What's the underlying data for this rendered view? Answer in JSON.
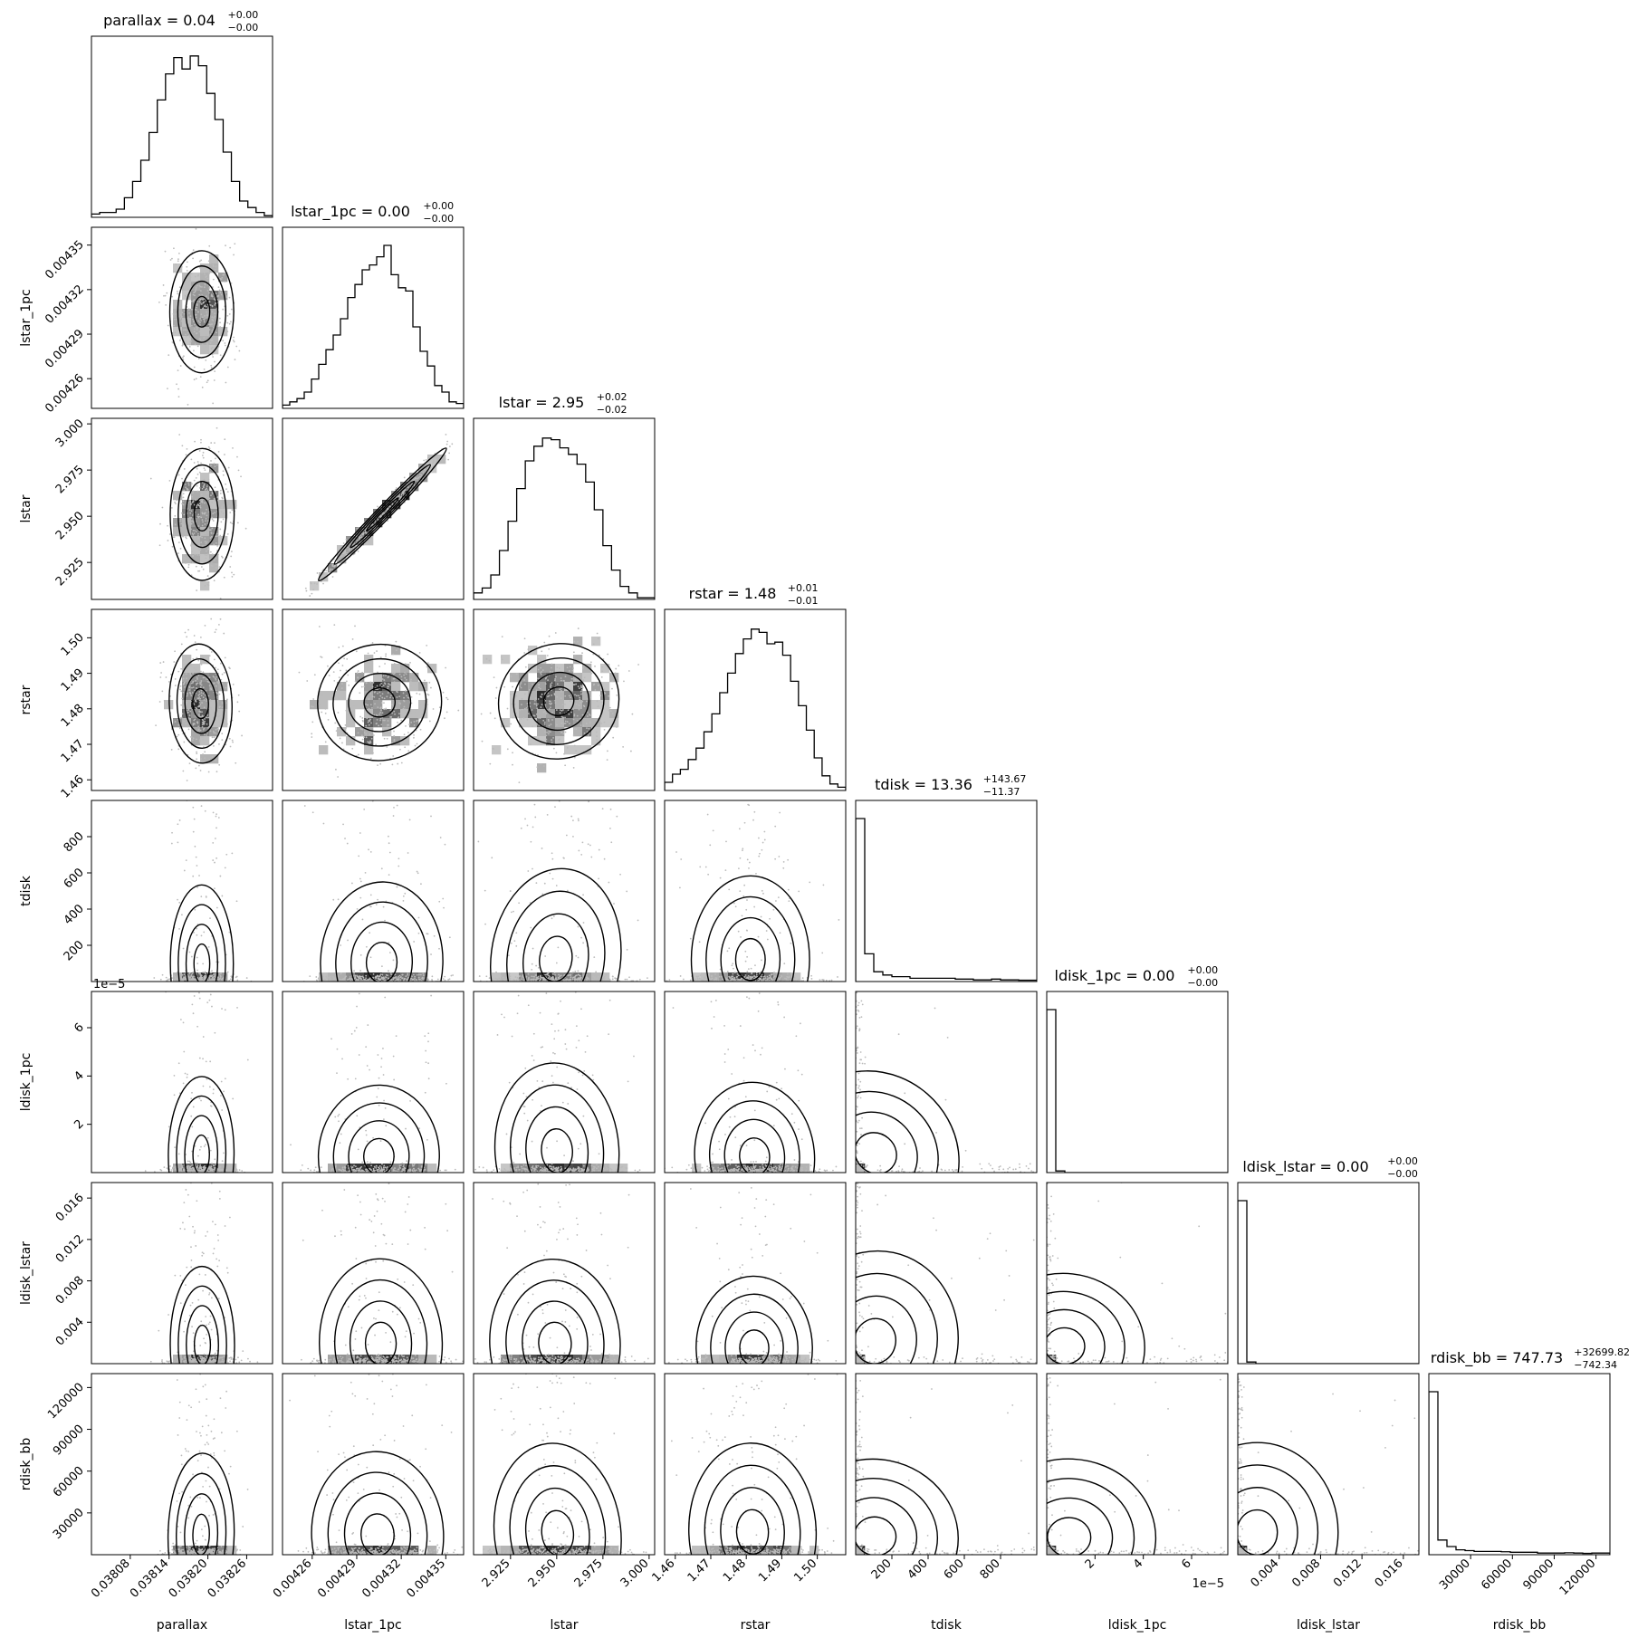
{
  "chart_data": {
    "type": "corner",
    "parameters": [
      {
        "name": "parallax",
        "label": "parallax",
        "range": [
          0.03802,
          0.0383
        ],
        "ticks": [
          0.03808,
          0.03814,
          0.0382,
          0.03826
        ],
        "tick_labels": [
          "0.03808",
          "0.03814",
          "0.03820",
          "0.03826"
        ],
        "title": {
          "text": "parallax = 0.04",
          "sup": "+0.00",
          "sub": "−0.00"
        },
        "median": 0.03819,
        "sigma": 2.5e-05,
        "skew": false,
        "hist": [
          0.02,
          0.03,
          0.03,
          0.05,
          0.12,
          0.22,
          0.35,
          0.52,
          0.72,
          0.88,
          0.98,
          0.91,
          0.99,
          0.93,
          0.76,
          0.6,
          0.4,
          0.22,
          0.1,
          0.06,
          0.03,
          0.01
        ]
      },
      {
        "name": "lstar_1pc",
        "label": "lstar_1pc",
        "range": [
          0.00424,
          0.004362
        ],
        "ticks": [
          0.00426,
          0.00429,
          0.00432,
          0.00435
        ],
        "tick_labels": [
          "0.00426",
          "0.00429",
          "0.00432",
          "0.00435"
        ],
        "title": {
          "text": "lstar_1pc = 0.00",
          "sup": "+0.00",
          "sub": "−0.00"
        },
        "median": 0.004306,
        "sigma": 2.05e-05,
        "skew": false,
        "hist": [
          0.02,
          0.04,
          0.06,
          0.1,
          0.18,
          0.27,
          0.36,
          0.45,
          0.55,
          0.68,
          0.76,
          0.85,
          0.88,
          0.93,
          1.0,
          0.82,
          0.74,
          0.72,
          0.5,
          0.35,
          0.26,
          0.14,
          0.1,
          0.04,
          0.03
        ]
      },
      {
        "name": "lstar",
        "label": "lstar",
        "range": [
          2.905,
          3.003
        ],
        "ticks": [
          2.925,
          2.95,
          2.975,
          3.0
        ],
        "tick_labels": [
          "2.925",
          "2.950",
          "2.975",
          "3.000"
        ],
        "title": {
          "text": "lstar = 2.95",
          "sup": "+0.02",
          "sub": "−0.02"
        },
        "median": 2.95,
        "sigma": 0.017,
        "skew": false,
        "hist": [
          0.04,
          0.07,
          0.15,
          0.3,
          0.48,
          0.68,
          0.85,
          0.94,
          0.99,
          0.98,
          0.93,
          0.89,
          0.83,
          0.72,
          0.55,
          0.33,
          0.18,
          0.08,
          0.04,
          0.01,
          0.01
        ]
      },
      {
        "name": "rstar",
        "label": "rstar",
        "range": [
          1.457,
          1.508
        ],
        "ticks": [
          1.46,
          1.47,
          1.48,
          1.49,
          1.5
        ],
        "tick_labels": [
          "1.46",
          "1.47",
          "1.48",
          "1.49",
          "1.50"
        ],
        "title": {
          "text": "rstar = 1.48",
          "sup": "+0.01",
          "sub": "−0.01"
        },
        "median": 1.482,
        "sigma": 0.0085,
        "skew": false,
        "hist": [
          0.05,
          0.1,
          0.13,
          0.19,
          0.26,
          0.36,
          0.47,
          0.6,
          0.72,
          0.84,
          0.93,
          0.99,
          0.97,
          0.9,
          0.91,
          0.83,
          0.67,
          0.52,
          0.37,
          0.2,
          0.09,
          0.04,
          0.02
        ]
      },
      {
        "name": "tdisk",
        "label": "tdisk",
        "range": [
          0,
          1000
        ],
        "ticks": [
          200,
          400,
          600,
          800
        ],
        "tick_labels": [
          "200",
          "400",
          "600",
          "800"
        ],
        "title": {
          "text": "tdisk = 13.36",
          "sup": "+143.67",
          "sub": "−11.37"
        },
        "median": 13.36,
        "sigma": 60,
        "skew": true,
        "hist": [
          1.0,
          0.17,
          0.06,
          0.04,
          0.03,
          0.03,
          0.02,
          0.02,
          0.02,
          0.02,
          0.02,
          0.015,
          0.015,
          0.01,
          0.01,
          0.015,
          0.01,
          0.01,
          0.008,
          0.008
        ]
      },
      {
        "name": "ldisk_1pc",
        "label": "ldisk_1pc",
        "range": [
          0,
          7.5e-05
        ],
        "ticks": [
          2e-05,
          4e-05,
          6e-05
        ],
        "tick_labels": [
          "2",
          "4",
          "6"
        ],
        "exponent_label": "1e−5",
        "title": {
          "text": "ldisk_1pc = 0.00",
          "sup": "+0.00",
          "sub": "−0.00"
        },
        "median": 1e-07,
        "sigma": 1e-06,
        "skew": true,
        "hist": [
          1.0,
          0.01,
          0,
          0,
          0,
          0,
          0,
          0,
          0,
          0,
          0,
          0,
          0,
          0,
          0,
          0,
          0,
          0,
          0,
          0
        ]
      },
      {
        "name": "ldisk_lstar",
        "label": "ldisk_lstar",
        "range": [
          0,
          0.0175
        ],
        "ticks": [
          0.004,
          0.008,
          0.012,
          0.016
        ],
        "tick_labels": [
          "0.004",
          "0.008",
          "0.012",
          "0.016"
        ],
        "title": {
          "text": "ldisk_lstar = 0.00",
          "sup": "+0.00",
          "sub": "−0.00"
        },
        "median": 2e-05,
        "sigma": 0.0002,
        "skew": true,
        "hist": [
          1.0,
          0.01,
          0,
          0,
          0,
          0,
          0,
          0,
          0,
          0,
          0,
          0,
          0,
          0,
          0,
          0,
          0,
          0,
          0,
          0
        ]
      },
      {
        "name": "rdisk_bb",
        "label": "rdisk_bb",
        "range": [
          0,
          130000
        ],
        "ticks": [
          30000,
          60000,
          90000,
          120000
        ],
        "tick_labels": [
          "30000",
          "60000",
          "90000",
          "120000"
        ],
        "title": {
          "text": "rdisk_bb = 747.73",
          "sup": "+32699.82",
          "sub": "−742.34"
        },
        "median": 747.73,
        "sigma": 8000,
        "skew": true,
        "hist": [
          1.0,
          0.09,
          0.05,
          0.03,
          0.025,
          0.02,
          0.02,
          0.02,
          0.018,
          0.015,
          0.015,
          0.015,
          0.01,
          0.01,
          0.01,
          0.012,
          0.01,
          0.008,
          0.01,
          0.01
        ]
      }
    ]
  }
}
